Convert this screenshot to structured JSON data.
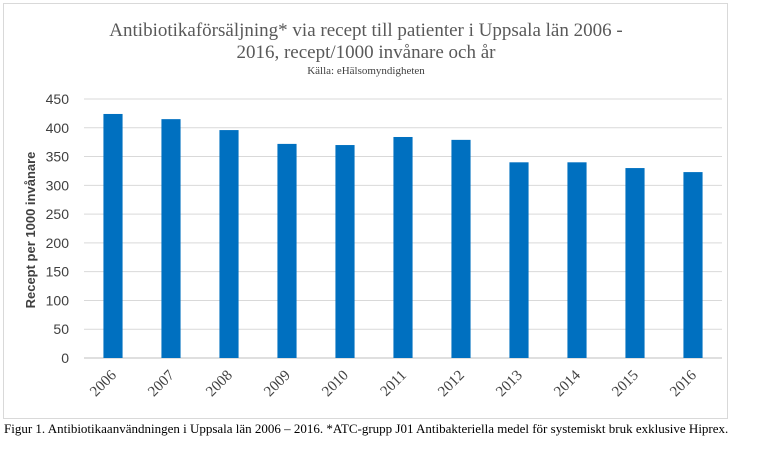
{
  "chart_data": {
    "type": "bar",
    "title_line1": "Antibiotikaförsäljning* via recept till patienter i Uppsala län 2006 -",
    "title_line2": "2016, recept/1000 invånare och år",
    "subtitle": "Källa: eHälsomyndigheten",
    "ylabel": "Recept per 1000 invånare",
    "xlabel": "",
    "categories": [
      "2006",
      "2007",
      "2008",
      "2009",
      "2010",
      "2011",
      "2012",
      "2013",
      "2014",
      "2015",
      "2016"
    ],
    "values": [
      424,
      415,
      396,
      372,
      370,
      384,
      379,
      340,
      340,
      330,
      323
    ],
    "ylim": [
      0,
      450
    ],
    "yticks": [
      0,
      50,
      100,
      150,
      200,
      250,
      300,
      350,
      400,
      450
    ],
    "bar_color": "#0070c0",
    "grid": true,
    "legend": "none"
  },
  "caption": "Figur 1. Antibiotikaanvändningen i Uppsala län 2006 – 2016. *ATC-grupp J01 Antibakteriella medel för systemiskt bruk exklusive Hiprex."
}
